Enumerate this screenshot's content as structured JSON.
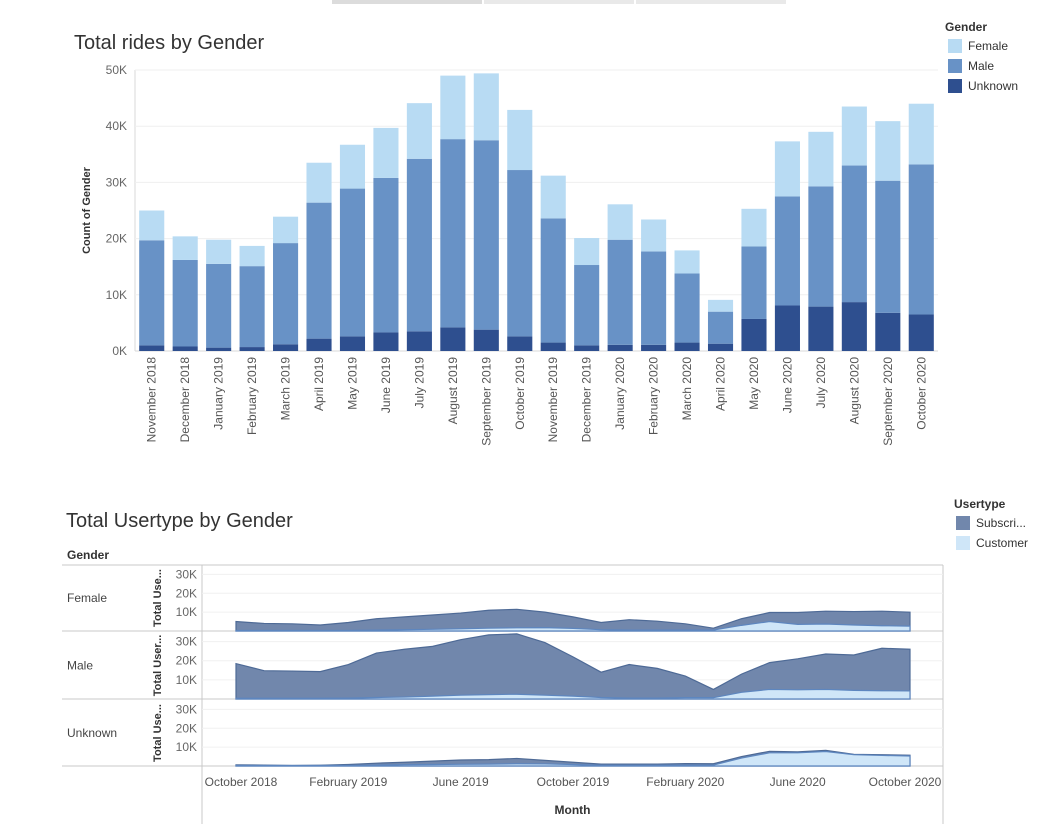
{
  "chart_data": [
    {
      "type": "bar",
      "stacked": true,
      "title": "Total rides by Gender",
      "ylabel": "Count of Gender",
      "ylim": [
        0,
        50000
      ],
      "y_ticks": [
        "0K",
        "10K",
        "20K",
        "30K",
        "40K",
        "50K"
      ],
      "grid": true,
      "legend_title": "Gender",
      "legend_position": "top-right",
      "categories": [
        "November 2018",
        "December 2018",
        "January 2019",
        "February 2019",
        "March 2019",
        "April 2019",
        "May 2019",
        "June 2019",
        "July 2019",
        "August 2019",
        "September 2019",
        "October 2019",
        "November 2019",
        "December 2019",
        "January 2020",
        "February 2020",
        "March 2020",
        "April 2020",
        "May 2020",
        "June 2020",
        "July 2020",
        "August 2020",
        "September 2020",
        "October 2020"
      ],
      "series": [
        {
          "name": "Unknown",
          "color": "#2e4f8f",
          "values": [
            1000,
            800,
            600,
            700,
            1200,
            2200,
            2600,
            3300,
            3500,
            4200,
            3800,
            2600,
            1500,
            1000,
            1100,
            1100,
            1500,
            1300,
            5700,
            8100,
            7900,
            8700,
            6800,
            6500
          ]
        },
        {
          "name": "Male",
          "color": "#6892c6",
          "values": [
            18700,
            15400,
            14900,
            14400,
            18000,
            24200,
            26300,
            27500,
            30700,
            33500,
            33700,
            29600,
            22100,
            14300,
            18700,
            16600,
            12300,
            5700,
            12900,
            19400,
            21400,
            24300,
            23500,
            26700
          ]
        },
        {
          "name": "Female",
          "color": "#b8dbf3",
          "values": [
            5300,
            4200,
            4300,
            3600,
            4700,
            7100,
            7800,
            8900,
            9900,
            11300,
            11900,
            10700,
            7600,
            4800,
            6300,
            5700,
            4100,
            2100,
            6700,
            9800,
            9700,
            10500,
            10600,
            10800
          ]
        }
      ]
    },
    {
      "type": "area",
      "title": "Total Usertype by Gender",
      "xlabel": "Month",
      "ylabel": "Total Use...",
      "row_header": "Gender",
      "legend_title": "Usertype",
      "legend_position": "top-right",
      "legend": [
        {
          "name": "Subscri...",
          "color": "#7187ac"
        },
        {
          "name": "Customer",
          "color": "#cfe6f8"
        }
      ],
      "x": [
        "October 2018",
        "November 2018",
        "December 2018",
        "January 2019",
        "February 2019",
        "March 2019",
        "April 2019",
        "May 2019",
        "June 2019",
        "July 2019",
        "August 2019",
        "September 2019",
        "October 2019",
        "November 2019",
        "December 2019",
        "January 2020",
        "February 2020",
        "March 2020",
        "April 2020",
        "May 2020",
        "June 2020",
        "July 2020",
        "August 2020",
        "September 2020",
        "October 2020"
      ],
      "x_ticks": [
        "October 2018",
        "February 2019",
        "June 2019",
        "October 2019",
        "February 2020",
        "June 2020",
        "October 2020"
      ],
      "y_ticks": [
        "10K",
        "20K",
        "30K"
      ],
      "ylim": [
        0,
        35000
      ],
      "rows": [
        {
          "gender": "Female",
          "axis_label": "Total Use...",
          "subscriber": [
            5000,
            4000,
            3800,
            3200,
            4500,
            6500,
            7500,
            8500,
            9500,
            11000,
            11500,
            10000,
            7500,
            4500,
            6000,
            5200,
            3800,
            1500,
            6500,
            9800,
            9800,
            10500,
            10300,
            10500,
            10000
          ],
          "customer": [
            300,
            300,
            300,
            300,
            300,
            500,
            700,
            900,
            1200,
            1500,
            1700,
            1800,
            1400,
            700,
            500,
            500,
            500,
            500,
            3000,
            5000,
            3500,
            3700,
            3200,
            2800,
            2600
          ]
        },
        {
          "gender": "Male",
          "axis_label": "Total User...",
          "subscriber": [
            18500,
            14800,
            14600,
            14300,
            18000,
            24000,
            26000,
            27500,
            31000,
            33500,
            34000,
            29500,
            22000,
            14000,
            18000,
            16000,
            12000,
            5000,
            13000,
            19000,
            21000,
            23500,
            23000,
            26500,
            26000
          ],
          "customer": [
            400,
            400,
            400,
            400,
            500,
            800,
            1000,
            1500,
            2000,
            2300,
            2500,
            2000,
            1500,
            800,
            500,
            500,
            700,
            700,
            3500,
            5000,
            4800,
            5000,
            4500,
            4300,
            4200
          ]
        },
        {
          "gender": "Unknown",
          "axis_label": "Total Use...",
          "subscriber": [
            600,
            500,
            300,
            400,
            800,
            1500,
            2000,
            2600,
            3200,
            3400,
            4000,
            3000,
            2000,
            1000,
            1000,
            1000,
            1300,
            1200,
            5000,
            7800,
            7500,
            8300,
            6200,
            6000,
            5700
          ],
          "customer": [
            300,
            300,
            300,
            300,
            300,
            500,
            700,
            800,
            900,
            1000,
            1200,
            1100,
            800,
            400,
            400,
            400,
            500,
            500,
            4200,
            7000,
            7000,
            7700,
            6000,
            5600,
            5300
          ]
        }
      ]
    }
  ]
}
